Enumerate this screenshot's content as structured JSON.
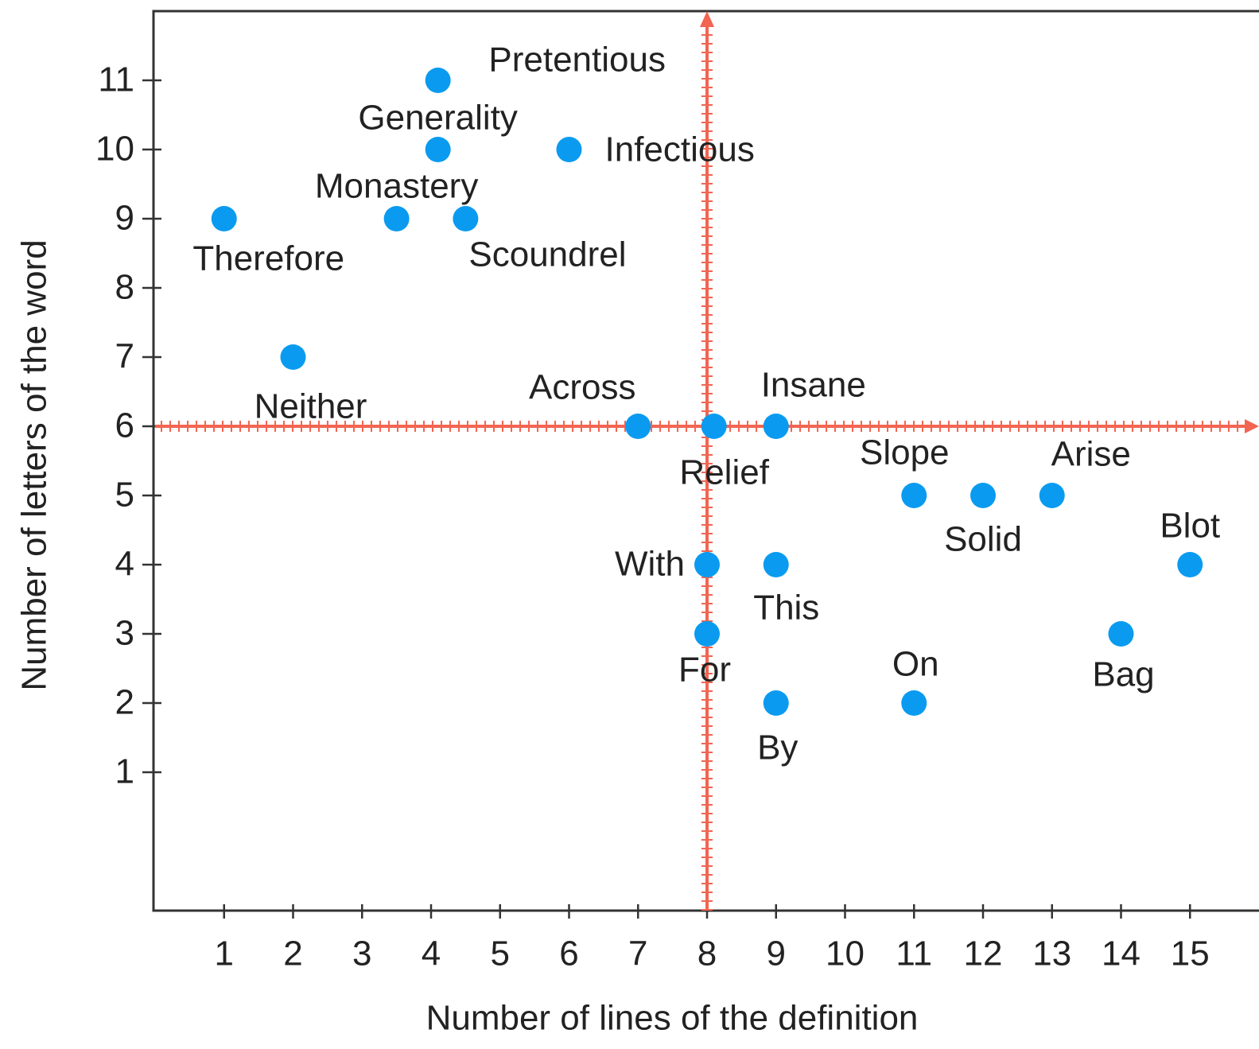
{
  "chart_data": {
    "type": "scatter",
    "x_label": "Number of lines of the definition",
    "y_label": "Number of letters of the word",
    "labels": [
      "Pretentious",
      "Generality",
      "Infectious",
      "Monastery",
      "Scoundrel",
      "Therefore",
      "Neither",
      "Across",
      "Relief",
      "Insane",
      "Slope",
      "Solid",
      "Arise",
      "Blot",
      "With",
      "This",
      "For",
      "By",
      "On",
      "Bag"
    ],
    "x": [
      4.1,
      4.1,
      6,
      3.5,
      4.5,
      1,
      2,
      7,
      8.1,
      9,
      11,
      12,
      13,
      15,
      8,
      9,
      8,
      9,
      11,
      14
    ],
    "y": [
      11,
      10,
      10,
      9,
      9,
      9,
      7,
      6,
      6,
      6,
      5,
      5,
      5,
      4,
      4,
      4,
      3,
      2,
      2,
      3
    ],
    "color": "#0a9bf0",
    "xlim": [
      0,
      16
    ],
    "ylim": [
      -1,
      12
    ],
    "xticks": [
      1,
      2,
      3,
      4,
      5,
      6,
      7,
      8,
      9,
      10,
      11,
      12,
      13,
      14,
      15
    ],
    "yticks": [
      1,
      2,
      3,
      4,
      5,
      6,
      7,
      8,
      9,
      10,
      11
    ],
    "reference_lines": {
      "x": 8,
      "y": 6,
      "color": "#f26552"
    }
  }
}
